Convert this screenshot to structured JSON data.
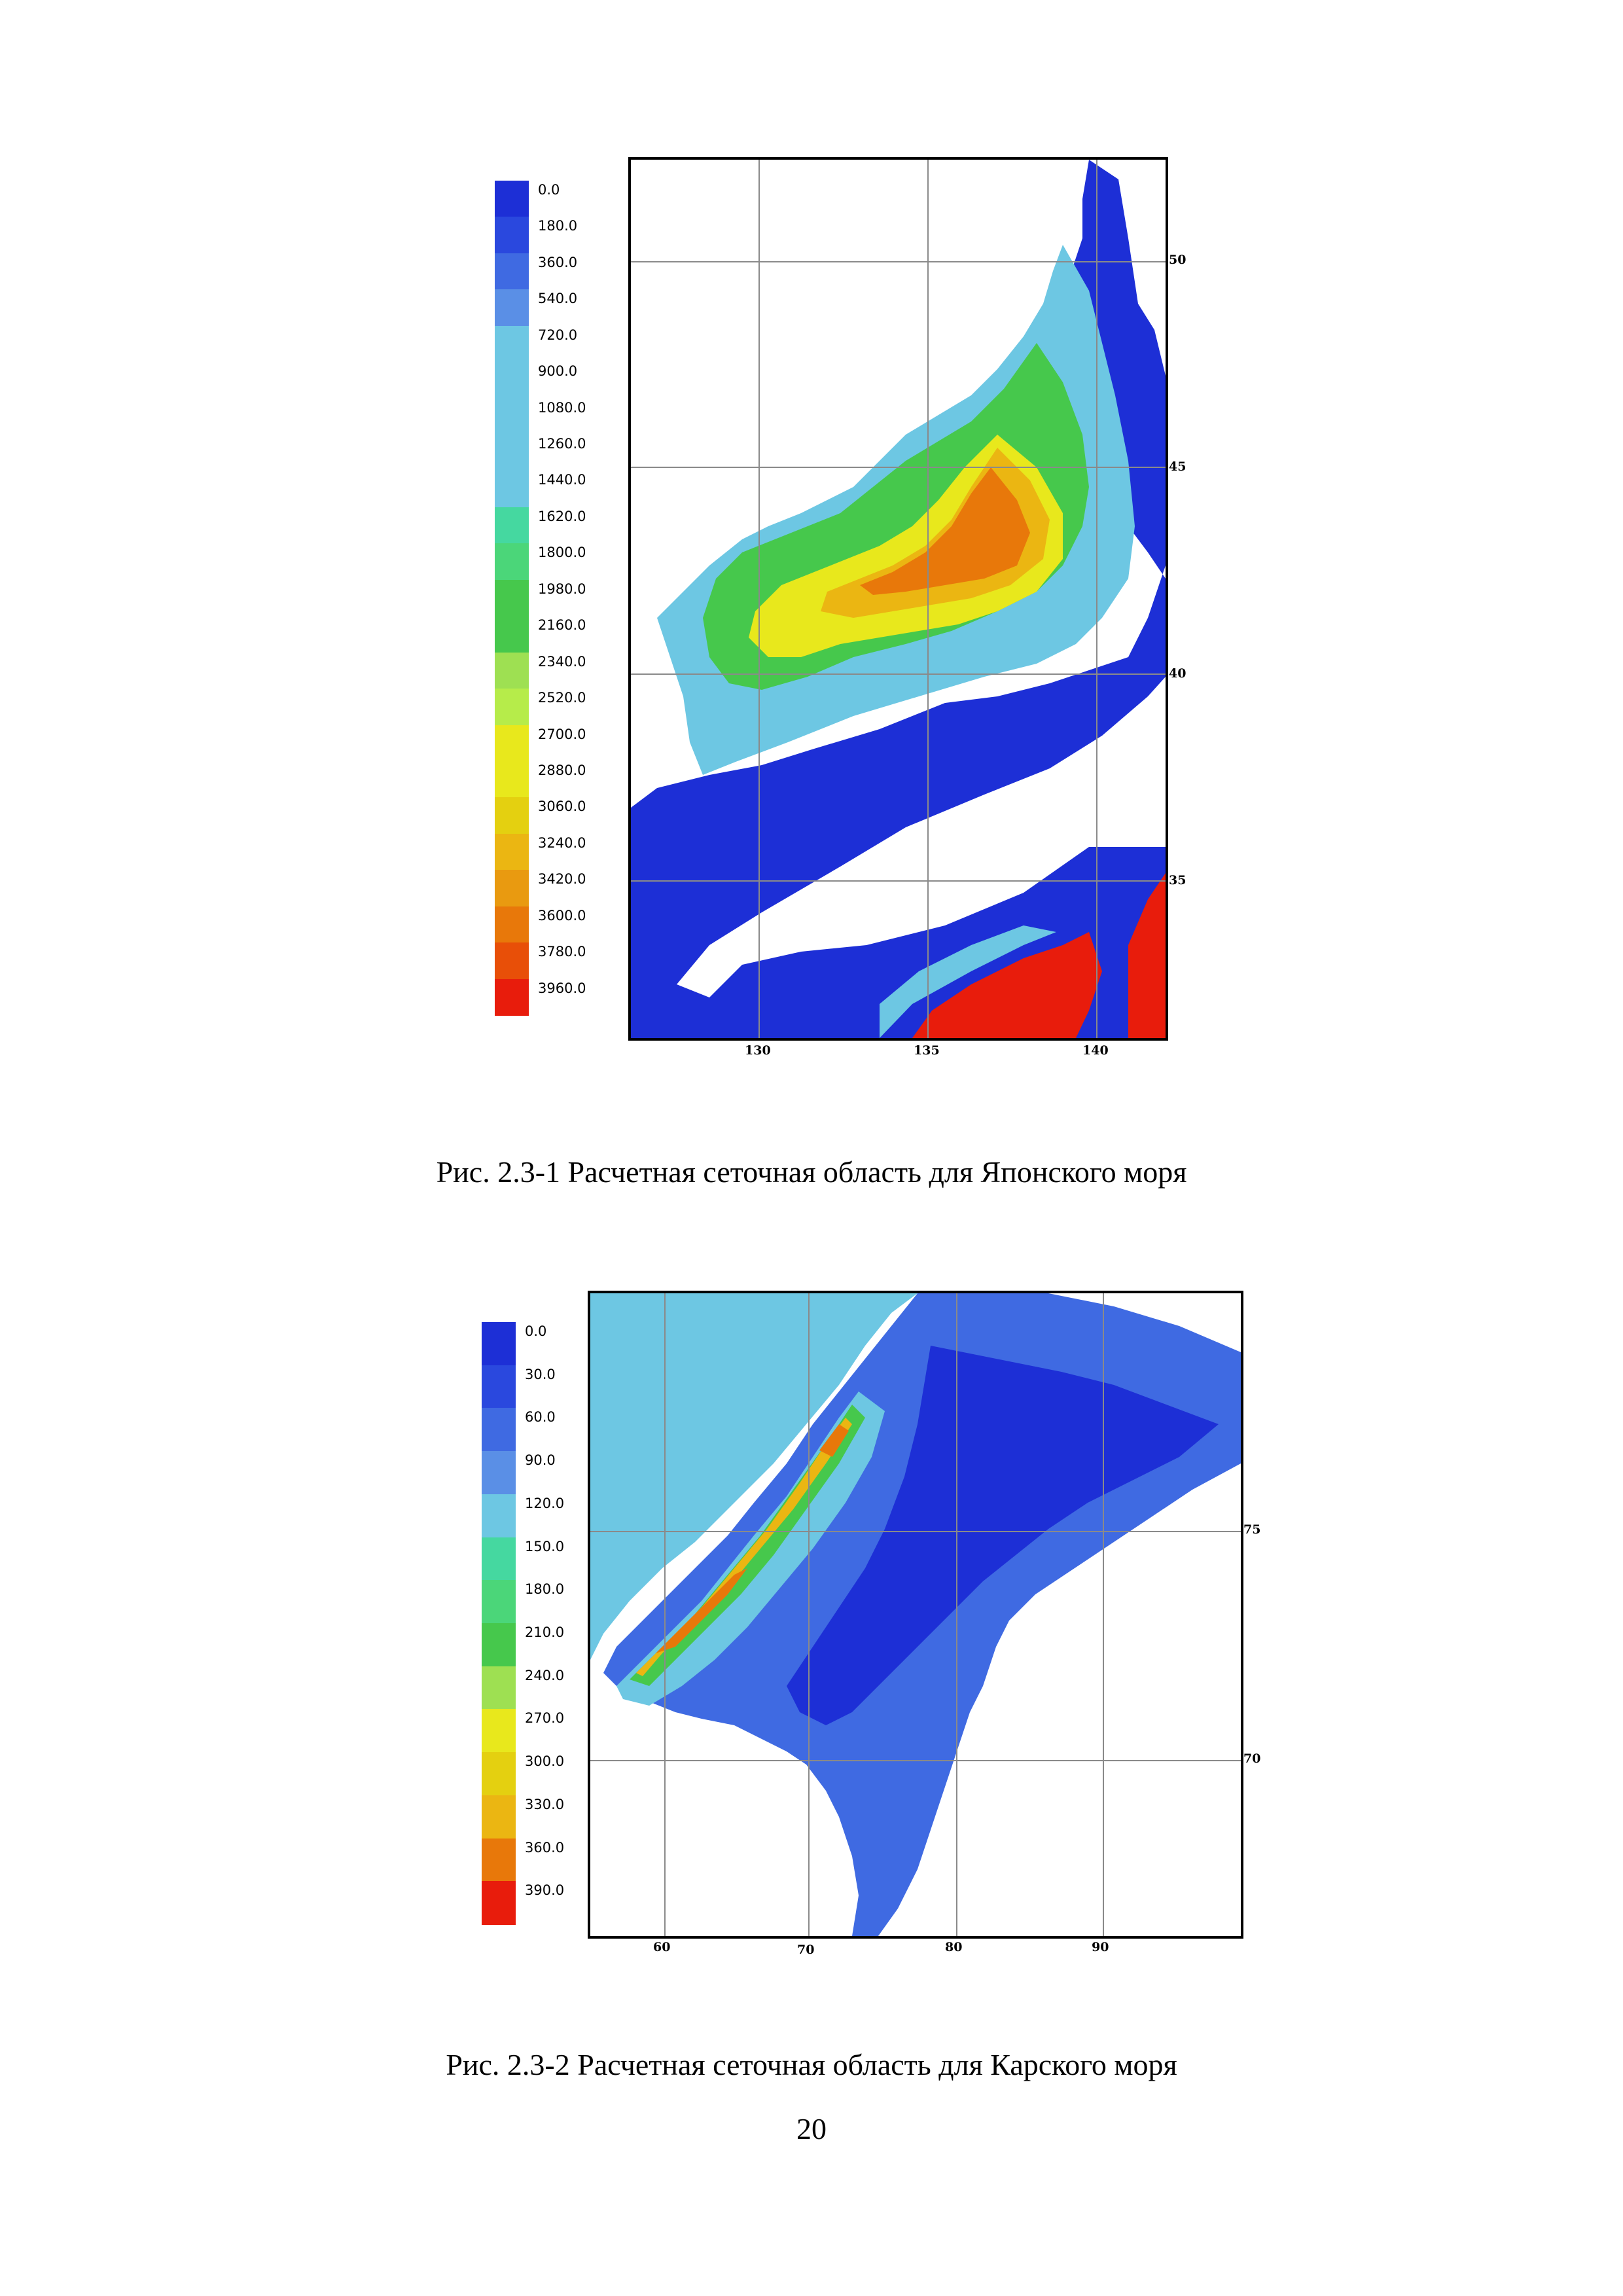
{
  "figures": [
    {
      "id": "japan",
      "caption": "Рис. 2.3-1 Расчетная сеточная область для Японского моря",
      "legend": {
        "labels": [
          "0.0",
          "180.0",
          "360.0",
          "540.0",
          "720.0",
          "900.0",
          "1080.0",
          "1260.0",
          "1440.0",
          "1620.0",
          "1800.0",
          "1980.0",
          "2160.0",
          "2340.0",
          "2520.0",
          "2700.0",
          "2880.0",
          "3060.0",
          "3240.0",
          "3420.0",
          "3600.0",
          "3780.0",
          "3960.0"
        ],
        "colors": [
          "#1d2fd6",
          "#2a48de",
          "#3f6ae2",
          "#5a8fe6",
          "#6dc7e3",
          "#6dc7e3",
          "#6dc7e3",
          "#6dc7e3",
          "#6dc7e3",
          "#45d8a0",
          "#4bd679",
          "#46c84c",
          "#46c84c",
          "#9ee052",
          "#b6ec4a",
          "#e8e81c",
          "#e8e81c",
          "#e4d010",
          "#ebb612",
          "#e99a10",
          "#e8780a",
          "#e84f08",
          "#e81c0c"
        ]
      },
      "map": {
        "x_ticks": [
          "130",
          "135",
          "140"
        ],
        "y_ticks": [
          "50",
          "45",
          "40",
          "35"
        ]
      }
    },
    {
      "id": "kara",
      "caption": "Рис. 2.3-2 Расчетная сеточная область для Карского моря",
      "legend": {
        "labels": [
          "0.0",
          "30.0",
          "60.0",
          "90.0",
          "120.0",
          "150.0",
          "180.0",
          "210.0",
          "240.0",
          "270.0",
          "300.0",
          "330.0",
          "360.0",
          "390.0"
        ],
        "colors": [
          "#1d2fd6",
          "#2a48de",
          "#3f6ae2",
          "#5a8fe6",
          "#6dc7e3",
          "#45d8a0",
          "#4bd679",
          "#46c84c",
          "#9ee052",
          "#e8e81c",
          "#e4d010",
          "#ebb612",
          "#e8780a",
          "#e81c0c"
        ]
      },
      "map": {
        "x_ticks": [
          "60",
          "70",
          "80",
          "90"
        ],
        "y_ticks": [
          "75",
          "70"
        ]
      }
    }
  ],
  "page_number": "20"
}
